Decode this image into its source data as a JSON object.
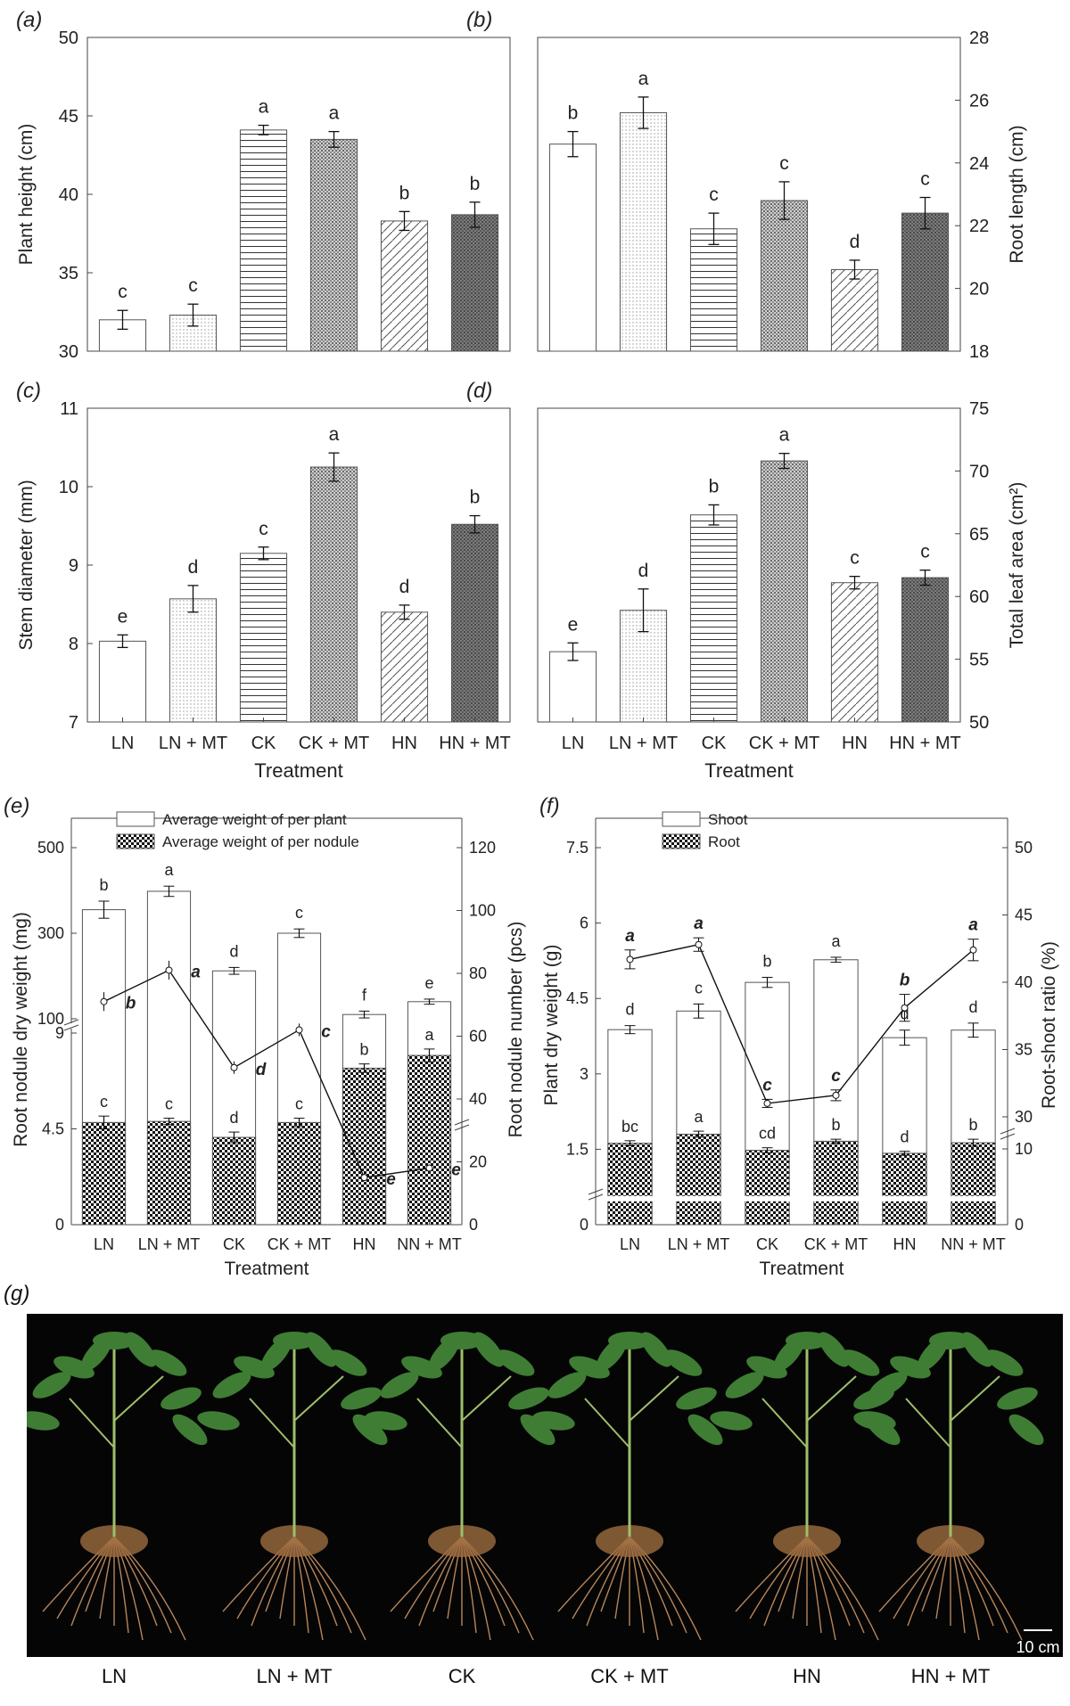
{
  "panels": {
    "a": {
      "letter": "(a)",
      "chart_data": {
        "type": "bar",
        "categories": [
          "LN",
          "LN + MT",
          "CK",
          "CK + MT",
          "HN",
          "HN + MT"
        ],
        "values": [
          32.0,
          32.3,
          44.1,
          43.5,
          38.3,
          38.7
        ],
        "errors": [
          0.6,
          0.7,
          0.3,
          0.5,
          0.6,
          0.8
        ],
        "letters": [
          "c",
          "c",
          "a",
          "a",
          "b",
          "b"
        ],
        "ylabel": "Plant height (cm)",
        "ylim": [
          30,
          50
        ],
        "yticks": [
          30,
          35,
          40,
          45,
          50
        ],
        "axis_side": "left"
      }
    },
    "b": {
      "letter": "(b)",
      "chart_data": {
        "type": "bar",
        "categories": [
          "LN",
          "LN + MT",
          "CK",
          "CK + MT",
          "HN",
          "HN + MT"
        ],
        "values": [
          24.6,
          25.6,
          21.9,
          22.8,
          20.6,
          22.4
        ],
        "errors": [
          0.4,
          0.5,
          0.5,
          0.6,
          0.3,
          0.5
        ],
        "letters": [
          "b",
          "a",
          "c",
          "c",
          "d",
          "c"
        ],
        "ylabel": "Root length (cm)",
        "ylim": [
          18,
          28
        ],
        "yticks": [
          18,
          20,
          22,
          24,
          26,
          28
        ],
        "axis_side": "right"
      }
    },
    "c": {
      "letter": "(c)",
      "chart_data": {
        "type": "bar",
        "categories": [
          "LN",
          "LN + MT",
          "CK",
          "CK + MT",
          "HN",
          "HN + MT"
        ],
        "values": [
          8.03,
          8.57,
          9.15,
          10.25,
          8.4,
          9.52
        ],
        "errors": [
          0.08,
          0.17,
          0.08,
          0.18,
          0.09,
          0.11
        ],
        "letters": [
          "e",
          "d",
          "c",
          "a",
          "d",
          "b"
        ],
        "ylabel": "Stem diameter (mm)",
        "ylim": [
          7,
          11
        ],
        "yticks": [
          7,
          8,
          9,
          10,
          11
        ],
        "axis_side": "left",
        "xlabel": "Treatment"
      }
    },
    "d": {
      "letter": "(d)",
      "chart_data": {
        "type": "bar",
        "categories": [
          "LN",
          "LN + MT",
          "CK",
          "CK + MT",
          "HN",
          "HN + MT"
        ],
        "values": [
          55.6,
          58.9,
          66.5,
          70.8,
          61.1,
          61.5
        ],
        "errors": [
          0.7,
          1.7,
          0.8,
          0.6,
          0.5,
          0.6
        ],
        "letters": [
          "e",
          "d",
          "b",
          "a",
          "c",
          "c"
        ],
        "ylabel": "Total leaf area (cm²)",
        "ylim": [
          50,
          75
        ],
        "yticks": [
          50,
          55,
          60,
          65,
          70,
          75
        ],
        "axis_side": "right",
        "xlabel": "Treatment"
      }
    },
    "e": {
      "letter": "(e)",
      "chart_data": {
        "type": "bar+line",
        "categories": [
          "LN",
          "LN + MT",
          "CK",
          "CK + MT",
          "HN",
          "NN + MT"
        ],
        "xlabel": "Treatment",
        "ylabel": "Root nodule dry weight (mg)",
        "y2label": "Root nodule number (pcs)",
        "yticks_upper": [
          100,
          300,
          500
        ],
        "yticks_lower": [
          0,
          4.5,
          9
        ],
        "y2ticks": [
          0,
          20,
          40,
          60,
          80,
          100,
          120
        ],
        "legend": [
          "Average weight of per plant",
          "Average weight of per nodule"
        ],
        "series": [
          {
            "name": "Average weight of per plant",
            "values": [
              355,
              398,
              212,
              300,
              110,
              140
            ],
            "errors": [
              20,
              12,
              8,
              10,
              8,
              6
            ],
            "letters": [
              "b",
              "a",
              "d",
              "c",
              "f",
              "e"
            ]
          },
          {
            "name": "Average weight of per nodule",
            "values": [
              4.8,
              4.85,
              4.1,
              4.8,
              7.35,
              7.95
            ],
            "errors": [
              0.3,
              0.15,
              0.25,
              0.2,
              0.2,
              0.3
            ],
            "letters": [
              "c",
              "c",
              "d",
              "c",
              "b",
              "a"
            ]
          },
          {
            "name": "Root nodule number",
            "values": [
              71,
              81,
              50,
              62,
              15,
              18
            ],
            "errors": [
              3,
              3,
              2,
              2,
              1,
              1
            ],
            "letters": [
              "b",
              "a",
              "d",
              "c",
              "e",
              "e"
            ]
          }
        ]
      }
    },
    "f": {
      "letter": "(f)",
      "chart_data": {
        "type": "stacked-bar+line",
        "categories": [
          "LN",
          "LN + MT",
          "CK",
          "CK + MT",
          "HN",
          "NN + MT"
        ],
        "xlabel": "Treatment",
        "ylabel": "Plant dry weight (g)",
        "y2label": "Root-shoot ratio (%)",
        "yticks": [
          0,
          1.5,
          3,
          4.5,
          6,
          7.5
        ],
        "y2ticks": [
          0,
          10,
          30,
          35,
          40,
          45,
          50
        ],
        "legend": [
          "Shoot",
          "Root"
        ],
        "series": [
          {
            "name": "Shoot",
            "values": [
              3.88,
              4.25,
              4.82,
              5.27,
              3.72,
              3.87
            ],
            "errors": [
              0.08,
              0.14,
              0.1,
              0.05,
              0.15,
              0.14
            ],
            "letters": [
              "d",
              "c",
              "b",
              "a",
              "d",
              "d"
            ]
          },
          {
            "name": "Root",
            "values": [
              1.62,
              1.8,
              1.48,
              1.66,
              1.42,
              1.63
            ],
            "errors": [
              0.05,
              0.06,
              0.05,
              0.04,
              0.04,
              0.07
            ],
            "letters": [
              "bc",
              "a",
              "cd",
              "b",
              "d",
              "b"
            ]
          },
          {
            "name": "Root-shoot ratio",
            "values": [
              41.7,
              42.8,
              31.0,
              31.6,
              38.1,
              42.4
            ],
            "errors": [
              0.7,
              0.5,
              0.3,
              0.4,
              1.0,
              0.8
            ],
            "letters": [
              "a",
              "a",
              "c",
              "c",
              "b",
              "a"
            ]
          }
        ]
      }
    },
    "g": {
      "letter": "(g)",
      "labels": [
        "LN",
        "LN + MT",
        "CK",
        "CK + MT",
        "HN",
        "HN + MT"
      ],
      "scale_bar": "10 cm"
    }
  }
}
